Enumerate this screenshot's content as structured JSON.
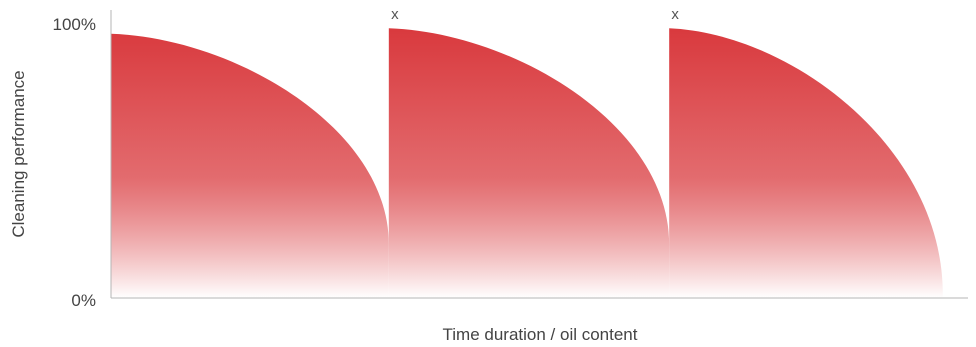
{
  "chart_data": {
    "type": "area",
    "title": "",
    "xlabel": "Time duration / oil content",
    "ylabel": "Cleaning performance",
    "yticks": [
      "100%",
      "0%"
    ],
    "ylim": [
      0,
      100
    ],
    "xlim": [
      0,
      100
    ],
    "grid": false,
    "legend": "none",
    "colors": {
      "fill_top": "#d93a3e",
      "fill_bottom": "#ffffff",
      "axis": "#b5b5b5"
    },
    "cycles": [
      {
        "x_start": 0,
        "x_end": 32.8,
        "y_start": 94,
        "y_end": 18,
        "marker": ""
      },
      {
        "x_start": 32.8,
        "x_end": 65.9,
        "y_start": 96,
        "y_end": 18,
        "marker": "x"
      },
      {
        "x_start": 65.9,
        "x_end": 98.2,
        "y_start": 96,
        "y_end": 0,
        "marker": "x"
      }
    ]
  }
}
